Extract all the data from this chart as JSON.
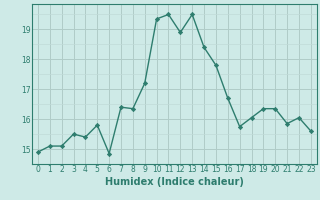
{
  "x": [
    0,
    1,
    2,
    3,
    4,
    5,
    6,
    7,
    8,
    9,
    10,
    11,
    12,
    13,
    14,
    15,
    16,
    17,
    18,
    19,
    20,
    21,
    22,
    23
  ],
  "y": [
    14.9,
    15.1,
    15.1,
    15.5,
    15.4,
    15.8,
    14.85,
    16.4,
    16.35,
    17.2,
    19.35,
    19.5,
    18.9,
    19.5,
    18.4,
    17.8,
    16.7,
    15.75,
    16.05,
    16.35,
    16.35,
    15.85,
    16.05,
    15.6
  ],
  "line_color": "#2e7d6e",
  "marker": "D",
  "markersize": 2.2,
  "linewidth": 1.0,
  "bg_color": "#ceeae7",
  "grid_color_major": "#b0ccc8",
  "grid_color_minor": "#c0dbd8",
  "xlabel": "Humidex (Indice chaleur)",
  "xlabel_fontsize": 7.0,
  "xlim": [
    -0.5,
    23.5
  ],
  "ylim": [
    14.5,
    19.85
  ],
  "yticks": [
    15,
    16,
    17,
    18,
    19
  ],
  "xticks": [
    0,
    1,
    2,
    3,
    4,
    5,
    6,
    7,
    8,
    9,
    10,
    11,
    12,
    13,
    14,
    15,
    16,
    17,
    18,
    19,
    20,
    21,
    22,
    23
  ],
  "tick_fontsize": 5.5,
  "tick_color": "#2e7d6e"
}
